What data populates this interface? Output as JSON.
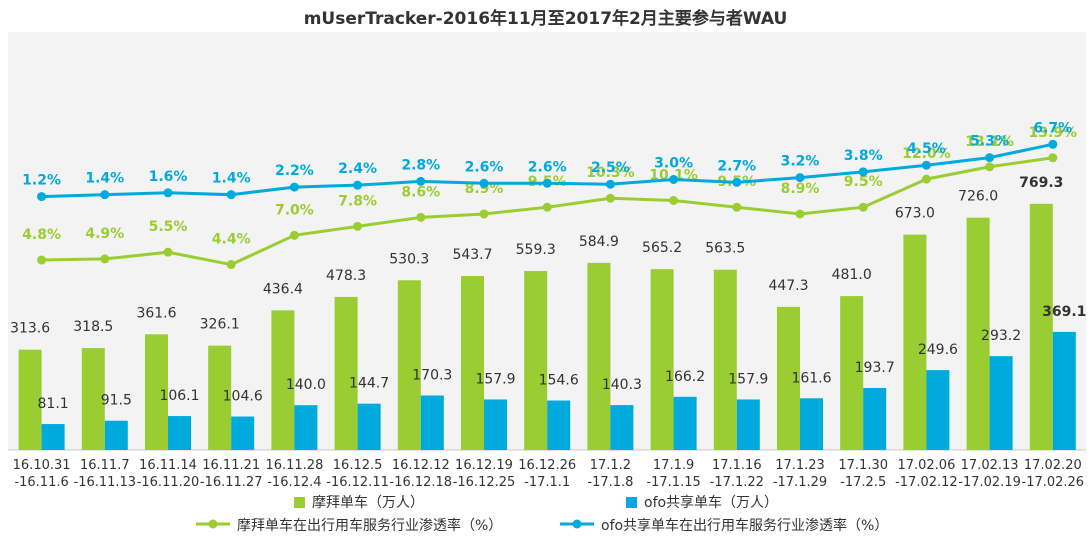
{
  "chart_data": {
    "type": "bar",
    "title": "mUserTracker-2016年11月至2017年2月主要参与者WAU",
    "categories": [
      [
        "16.10.31",
        "-16.11.6"
      ],
      [
        "16.11.7",
        "-16.11.13"
      ],
      [
        "16.11.14",
        "-16.11.20"
      ],
      [
        "16.11.21",
        "-16.11.27"
      ],
      [
        "16.11.28",
        "-16.12.4"
      ],
      [
        "16.12.5",
        "-16.12.11"
      ],
      [
        "16.12.12",
        "-16.12.18"
      ],
      [
        "16.12.19",
        "-16.12.25"
      ],
      [
        "16.12.26",
        "-17.1.1"
      ],
      [
        "17.1.2",
        "-17.1.8"
      ],
      [
        "17.1.9",
        "-17.1.15"
      ],
      [
        "17.1.16",
        "-17.1.22"
      ],
      [
        "17.1.23",
        "-17.1.29"
      ],
      [
        "17.1.30",
        "-17.2.5"
      ],
      [
        "17.02.06",
        "-17.02.12"
      ],
      [
        "17.02.13",
        "-17.02.19"
      ],
      [
        "17.02.20",
        "-17.02.26"
      ]
    ],
    "bar_series": [
      {
        "name": "摩拜单车（万人）",
        "color": "#9ACD32",
        "values": [
          313.6,
          318.5,
          361.6,
          326.1,
          436.4,
          478.3,
          530.3,
          543.7,
          559.3,
          584.9,
          565.2,
          563.5,
          447.3,
          481.0,
          673.0,
          726.0,
          769.3
        ],
        "labels": [
          "313.6",
          "318.5",
          "361.6",
          "326.1",
          "436.4",
          "478.3",
          "530.3",
          "543.7",
          "559.3",
          "584.9",
          "565.2",
          "563.5",
          "447.3",
          "481.0",
          "673.0",
          "726.0",
          "769.3"
        ]
      },
      {
        "name": "ofo共享单车（万人）",
        "color": "#00AADD",
        "values": [
          81.1,
          91.5,
          106.1,
          104.6,
          140.0,
          144.7,
          170.3,
          157.9,
          154.6,
          140.3,
          166.2,
          157.9,
          161.6,
          193.7,
          249.6,
          293.2,
          369.1
        ],
        "labels": [
          "81.1",
          "91.5",
          "106.1",
          "104.6",
          "140.0",
          "144.7",
          "170.3",
          "157.9",
          "154.6",
          "140.3",
          "166.2",
          "157.9",
          "161.6",
          "193.7",
          "249.6",
          "293.2",
          "369.1"
        ]
      }
    ],
    "line_series": [
      {
        "name": "摩拜单车在出行用车服务行业渗透率（%）",
        "color": "#9ACD32",
        "values": [
          4.8,
          4.9,
          5.5,
          4.4,
          7.0,
          7.8,
          8.6,
          8.9,
          9.5,
          10.3,
          10.1,
          9.5,
          8.9,
          9.5,
          12.0,
          13.1,
          13.9
        ],
        "labels": [
          "4.8%",
          "4.9%",
          "5.5%",
          "4.4%",
          "7.0%",
          "7.8%",
          "8.6%",
          "8.9%",
          "9.5%",
          "10.3%",
          "10.1%",
          "9.5%",
          "8.9%",
          "9.5%",
          "12.0%",
          "13.1%",
          "13.9%"
        ]
      },
      {
        "name": "ofo共享单车在出行用车服务行业渗透率（%）",
        "color": "#00AADD",
        "values": [
          1.2,
          1.4,
          1.6,
          1.4,
          2.2,
          2.4,
          2.8,
          2.6,
          2.6,
          2.5,
          3.0,
          2.7,
          3.2,
          3.8,
          4.5,
          5.3,
          6.7
        ],
        "labels": [
          "1.2%",
          "1.4%",
          "1.6%",
          "1.4%",
          "2.2%",
          "2.4%",
          "2.8%",
          "2.6%",
          "2.6%",
          "2.5%",
          "3.0%",
          "2.7%",
          "3.2%",
          "3.8%",
          "4.5%",
          "5.3%",
          "6.7%"
        ]
      }
    ],
    "legend_position": "bottom",
    "grid": false
  }
}
